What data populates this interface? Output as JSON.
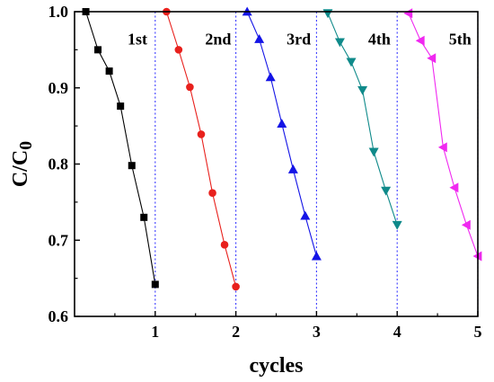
{
  "chart_data": {
    "type": "scatter",
    "title": "",
    "xlabel": "cycles",
    "ylabel_main": "C/C",
    "ylabel_sub": "0",
    "xlim": [
      0,
      5
    ],
    "ylim": [
      0.6,
      1.0
    ],
    "xticks": [
      {
        "value": 1,
        "label": "1"
      },
      {
        "value": 2,
        "label": "2"
      },
      {
        "value": 3,
        "label": "3"
      },
      {
        "value": 4,
        "label": "4"
      },
      {
        "value": 5,
        "label": "5"
      }
    ],
    "yticks": [
      {
        "value": 0.6,
        "label": "0.6"
      },
      {
        "value": 0.7,
        "label": "0.7"
      },
      {
        "value": 0.8,
        "label": "0.8"
      },
      {
        "value": 0.9,
        "label": "0.9"
      },
      {
        "value": 1.0,
        "label": "1.0"
      }
    ],
    "cycle_dividers": [
      1,
      2,
      3,
      4,
      5
    ],
    "grid": false,
    "legend": "none",
    "series": [
      {
        "label": "1st",
        "color": "#000000",
        "marker": "square",
        "x": [
          0.14,
          0.29,
          0.43,
          0.57,
          0.71,
          0.86,
          1.0
        ],
        "y": [
          1.0,
          0.95,
          0.922,
          0.876,
          0.798,
          0.73,
          0.642
        ]
      },
      {
        "label": "2nd",
        "color": "#e8201c",
        "marker": "circle",
        "x": [
          1.14,
          1.29,
          1.43,
          1.57,
          1.71,
          1.86,
          2.0
        ],
        "y": [
          1.0,
          0.95,
          0.901,
          0.839,
          0.762,
          0.694,
          0.639
        ]
      },
      {
        "label": "3rd",
        "color": "#1414e6",
        "marker": "triangle-up",
        "x": [
          2.14,
          2.29,
          2.43,
          2.57,
          2.71,
          2.86,
          3.0
        ],
        "y": [
          1.0,
          0.964,
          0.914,
          0.853,
          0.793,
          0.732,
          0.679
        ]
      },
      {
        "label": "4th",
        "color": "#0f8a8a",
        "marker": "triangle-down",
        "x": [
          3.14,
          3.29,
          3.43,
          3.57,
          3.71,
          3.86,
          4.0
        ],
        "y": [
          0.998,
          0.96,
          0.934,
          0.897,
          0.816,
          0.765,
          0.72
        ]
      },
      {
        "label": "5th",
        "color": "#f028f0",
        "marker": "triangle-left",
        "x": [
          4.14,
          4.29,
          4.43,
          4.57,
          4.71,
          4.86,
          5.0
        ],
        "y": [
          0.998,
          0.962,
          0.939,
          0.822,
          0.769,
          0.72,
          0.679
        ]
      }
    ]
  }
}
